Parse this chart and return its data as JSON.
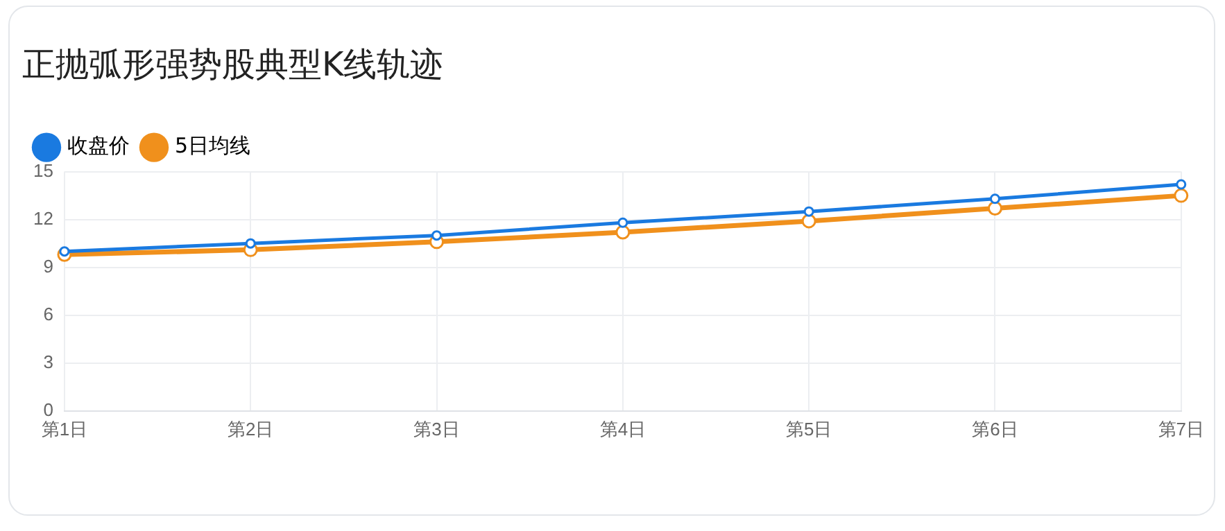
{
  "chart_data": {
    "type": "line",
    "title": "正抛弧形强势股典型K线轨迹",
    "categories": [
      "第1日",
      "第2日",
      "第3日",
      "第4日",
      "第5日",
      "第6日",
      "第7日"
    ],
    "series": [
      {
        "name": "收盘价",
        "color": "#1a7ae0",
        "values": [
          10.0,
          10.5,
          11.0,
          11.8,
          12.5,
          13.3,
          14.2
        ]
      },
      {
        "name": "5日均线",
        "color": "#f0901c",
        "values": [
          9.8,
          10.1,
          10.6,
          11.2,
          11.9,
          12.7,
          13.5
        ]
      }
    ],
    "ylim": [
      0,
      15
    ],
    "yticks": [
      0,
      3,
      6,
      9,
      12,
      15
    ],
    "grid": true,
    "legend": "top left",
    "marker": "circle",
    "line_style": "solid"
  }
}
